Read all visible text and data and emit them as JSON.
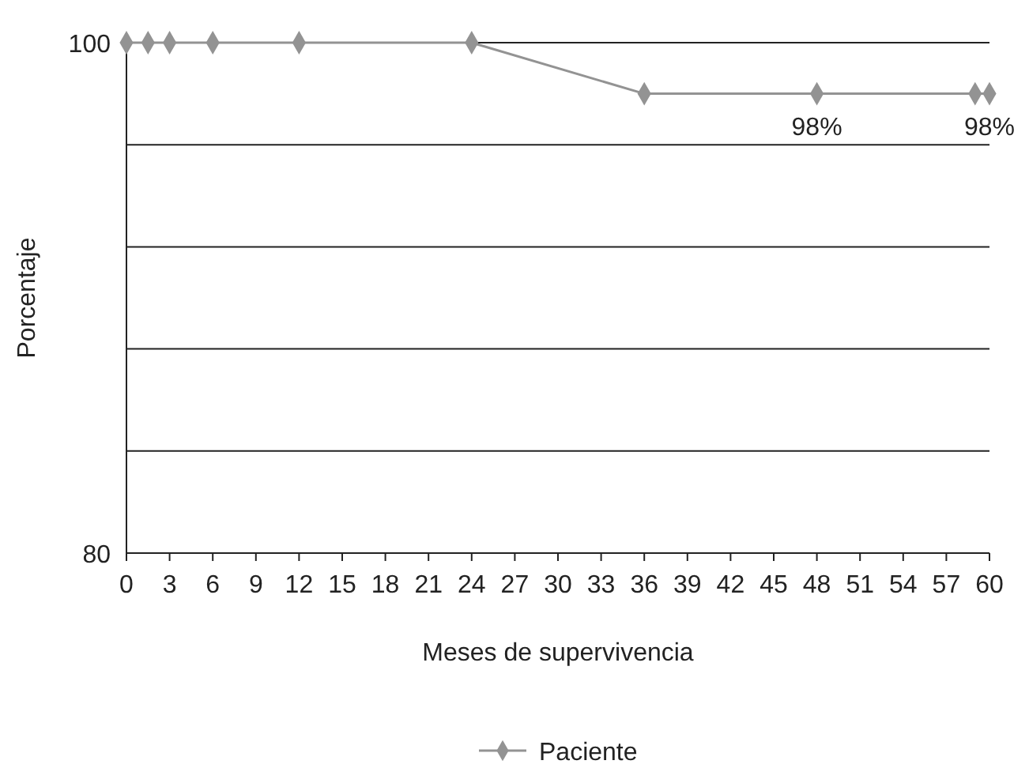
{
  "chart_data": {
    "type": "line",
    "xlabel": "Meses de supervivencia",
    "ylabel": "Porcentaje",
    "x": [
      0,
      1.5,
      3,
      6,
      12,
      24,
      36,
      48,
      59,
      60
    ],
    "series": [
      {
        "name": "Paciente",
        "color": "#939393",
        "values": [
          100,
          100,
          100,
          100,
          100,
          100,
          98,
          98,
          98,
          98
        ],
        "value_labels": [
          null,
          null,
          null,
          null,
          null,
          null,
          null,
          "98%",
          null,
          "98%"
        ]
      }
    ],
    "xlim": [
      0,
      60
    ],
    "xticks": [
      0,
      3,
      6,
      9,
      12,
      15,
      18,
      21,
      24,
      27,
      30,
      33,
      36,
      39,
      42,
      45,
      48,
      51,
      54,
      57,
      60
    ],
    "ylim": [
      80,
      100
    ],
    "yticks": [
      80,
      {
        "value": 84,
        "label": null
      },
      {
        "value": 88,
        "label": null
      },
      {
        "value": 92,
        "label": null
      },
      {
        "value": 96,
        "label": null
      },
      100
    ],
    "grid": "y",
    "legend": "bottom",
    "marker": "diamond",
    "line_style": "solid"
  }
}
